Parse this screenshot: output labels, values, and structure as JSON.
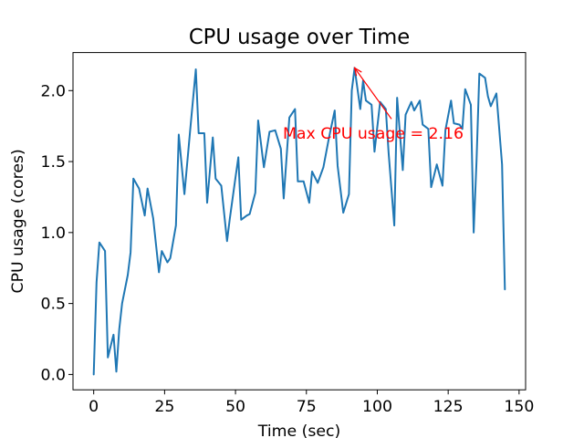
{
  "chart_data": {
    "type": "line",
    "title": "CPU usage over Time",
    "xlabel": "Time (sec)",
    "ylabel": "CPU usage (cores)",
    "xlim": [
      -7.3,
      152.3
    ],
    "ylim": [
      -0.108,
      2.268
    ],
    "xticks": [
      0,
      25,
      50,
      75,
      100,
      125,
      150
    ],
    "yticks": [
      0.0,
      0.5,
      1.0,
      1.5,
      2.0
    ],
    "xtick_labels": [
      "0",
      "25",
      "50",
      "75",
      "100",
      "125",
      "150"
    ],
    "ytick_labels": [
      "0.0",
      "0.5",
      "1.0",
      "1.5",
      "2.0"
    ],
    "grid": false,
    "series": [
      {
        "color": "#1f77b4",
        "points": [
          [
            0,
            0.0
          ],
          [
            1,
            0.65
          ],
          [
            2,
            0.93
          ],
          [
            4,
            0.87
          ],
          [
            5,
            0.12
          ],
          [
            7,
            0.28
          ],
          [
            8,
            0.02
          ],
          [
            9,
            0.32
          ],
          [
            10,
            0.5
          ],
          [
            12,
            0.7
          ],
          [
            13,
            0.86
          ],
          [
            14,
            1.38
          ],
          [
            16,
            1.31
          ],
          [
            18,
            1.12
          ],
          [
            19,
            1.31
          ],
          [
            21,
            1.1
          ],
          [
            23,
            0.72
          ],
          [
            24,
            0.87
          ],
          [
            26,
            0.79
          ],
          [
            27,
            0.82
          ],
          [
            29,
            1.05
          ],
          [
            30,
            1.69
          ],
          [
            32,
            1.27
          ],
          [
            34,
            1.72
          ],
          [
            36,
            2.15
          ],
          [
            37,
            1.7
          ],
          [
            39,
            1.7
          ],
          [
            40,
            1.21
          ],
          [
            42,
            1.67
          ],
          [
            43,
            1.38
          ],
          [
            45,
            1.33
          ],
          [
            47,
            0.94
          ],
          [
            48,
            1.1
          ],
          [
            50,
            1.39
          ],
          [
            51,
            1.53
          ],
          [
            52,
            1.09
          ],
          [
            54,
            1.12
          ],
          [
            55,
            1.13
          ],
          [
            57,
            1.28
          ],
          [
            58,
            1.79
          ],
          [
            60,
            1.46
          ],
          [
            62,
            1.71
          ],
          [
            64,
            1.72
          ],
          [
            66,
            1.59
          ],
          [
            67,
            1.24
          ],
          [
            69,
            1.81
          ],
          [
            71,
            1.87
          ],
          [
            72,
            1.36
          ],
          [
            74,
            1.36
          ],
          [
            76,
            1.21
          ],
          [
            77,
            1.43
          ],
          [
            79,
            1.35
          ],
          [
            81,
            1.46
          ],
          [
            83,
            1.67
          ],
          [
            85,
            1.86
          ],
          [
            86,
            1.47
          ],
          [
            88,
            1.14
          ],
          [
            90,
            1.27
          ],
          [
            91,
            2.0
          ],
          [
            92,
            2.16
          ],
          [
            94,
            1.87
          ],
          [
            95,
            2.07
          ],
          [
            96,
            1.93
          ],
          [
            98,
            1.9
          ],
          [
            99,
            1.57
          ],
          [
            101,
            1.92
          ],
          [
            103,
            1.87
          ],
          [
            104,
            1.56
          ],
          [
            106,
            1.05
          ],
          [
            107,
            1.95
          ],
          [
            109,
            1.44
          ],
          [
            110,
            1.83
          ],
          [
            112,
            1.92
          ],
          [
            113,
            1.86
          ],
          [
            115,
            1.93
          ],
          [
            116,
            1.76
          ],
          [
            118,
            1.73
          ],
          [
            119,
            1.32
          ],
          [
            121,
            1.48
          ],
          [
            123,
            1.33
          ],
          [
            124,
            1.72
          ],
          [
            126,
            1.93
          ],
          [
            127,
            1.77
          ],
          [
            129,
            1.76
          ],
          [
            130,
            1.73
          ],
          [
            131,
            2.01
          ],
          [
            133,
            1.9
          ],
          [
            134,
            1.0
          ],
          [
            135,
            1.5
          ],
          [
            136,
            2.12
          ],
          [
            138,
            2.09
          ],
          [
            139,
            1.96
          ],
          [
            140,
            1.89
          ],
          [
            142,
            1.98
          ],
          [
            144,
            1.48
          ],
          [
            145,
            0.6
          ]
        ]
      }
    ],
    "annotation": {
      "text": "Max CPU usage = 2.16",
      "color": "#ff0000",
      "xy": [
        92,
        2.16
      ],
      "xytext": [
        105,
        1.8
      ]
    }
  }
}
